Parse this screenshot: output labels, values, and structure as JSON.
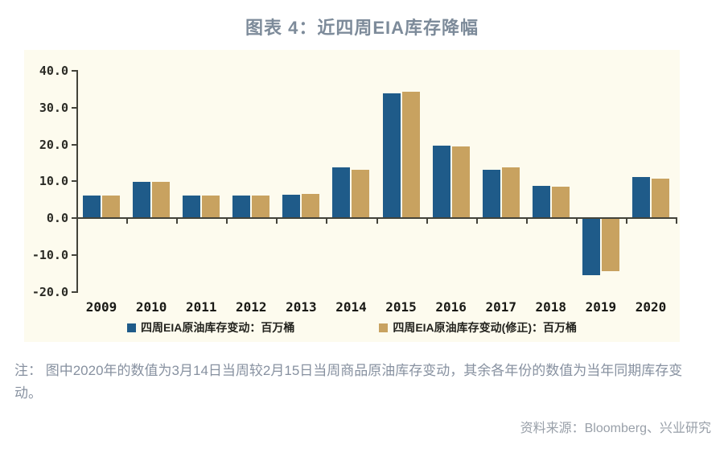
{
  "title": "图表 4：近四周EIA库存降幅",
  "chart_data": {
    "type": "bar",
    "categories": [
      "2009",
      "2010",
      "2011",
      "2012",
      "2013",
      "2014",
      "2015",
      "2016",
      "2017",
      "2018",
      "2019",
      "2020"
    ],
    "series": [
      {
        "name": "四周EIA原油库存变动：百万桶",
        "color": "#1f5b89",
        "values": [
          6.0,
          9.6,
          5.9,
          5.8,
          6.2,
          13.5,
          33.7,
          19.4,
          12.9,
          8.6,
          -15.2,
          10.9
        ]
      },
      {
        "name": "四周EIA原油库存变动(修正)：百万桶",
        "color": "#c8a260",
        "values": [
          6.0,
          9.6,
          5.8,
          5.8,
          6.4,
          12.9,
          34.0,
          19.2,
          13.6,
          8.2,
          -14.1,
          10.4
        ]
      }
    ],
    "ylim": [
      -20,
      40
    ],
    "ytick_step": 10,
    "ytick_labels": [
      "40.0",
      "30.0",
      "20.0",
      "10.0",
      "0.0",
      "-10.0",
      "-20.0"
    ],
    "grid": false,
    "legend_position": "bottom",
    "plot_background": "#fdfbee",
    "axis_color": "#43433a"
  },
  "note": "注： 图中2020年的数值为3月14日当周较2月15日当周商品原油库存变动，其余各年份的数值为当年同期库存变动。",
  "source": "资料来源：Bloomberg、兴业研究",
  "colors": {
    "title": "#7d8b9a",
    "note": "#8791a0",
    "source": "#99a0a9",
    "series_blue": "#1f5b89",
    "series_tan": "#c8a260",
    "panel_bg": "#fdfbee"
  }
}
